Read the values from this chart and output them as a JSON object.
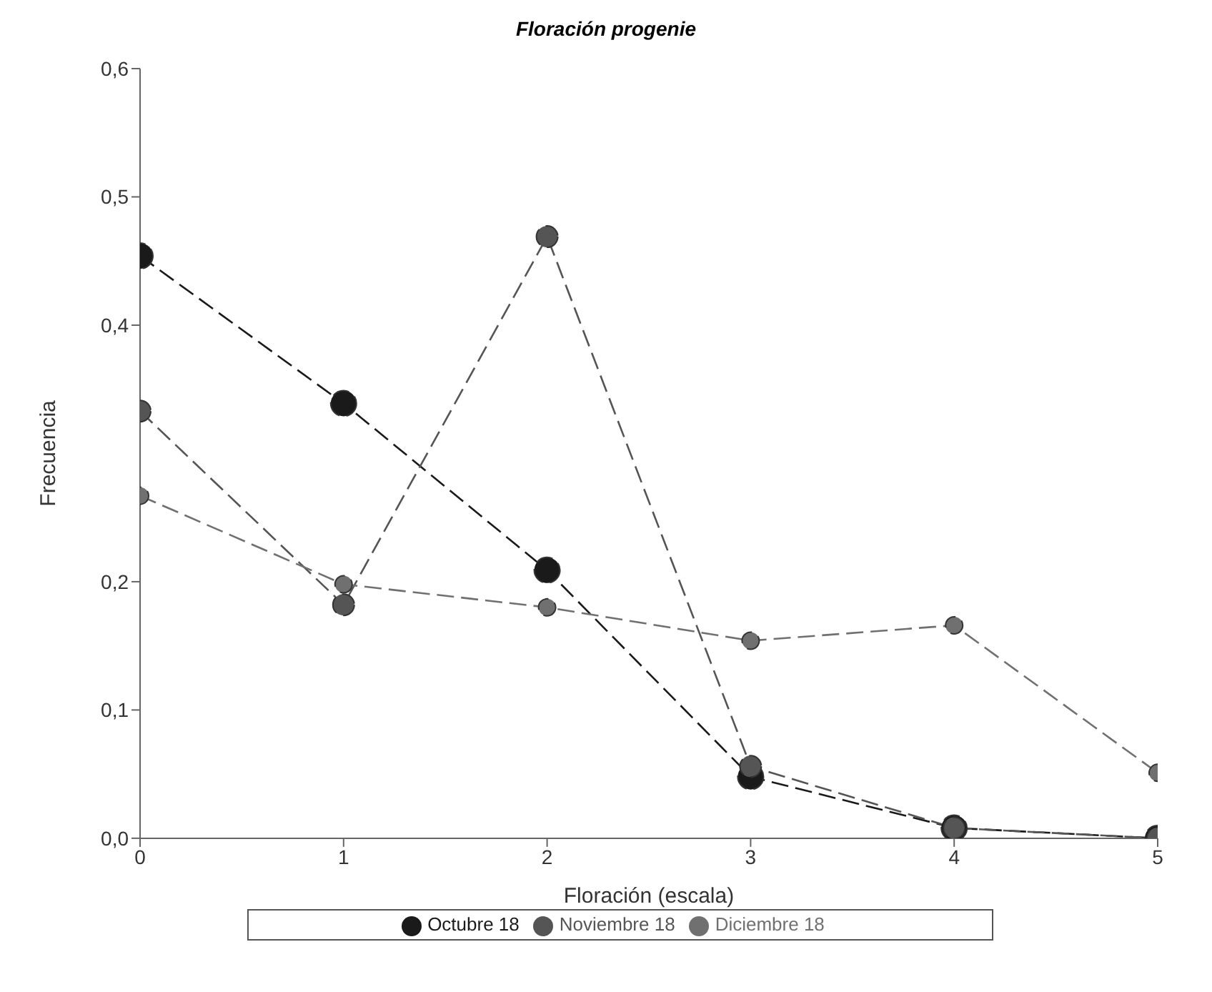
{
  "chart_data": {
    "type": "line",
    "title": "Floración progenie",
    "xlabel": "Floración (escala)",
    "ylabel": "Frecuencia",
    "x": [
      0,
      1,
      2,
      3,
      4,
      5
    ],
    "series": [
      {
        "name": "Octubre 18",
        "color": "#1a1a1a",
        "values": [
          0.454,
          0.339,
          0.209,
          0.048,
          0.008,
          0.0
        ]
      },
      {
        "name": "Noviembre 18",
        "color": "#555555",
        "values": [
          0.333,
          0.182,
          0.469,
          0.056,
          0.008,
          0.0
        ]
      },
      {
        "name": "Diciembre 18",
        "color": "#707070",
        "values": [
          0.267,
          0.198,
          0.18,
          0.154,
          0.166,
          0.051
        ]
      }
    ],
    "xlim": [
      0,
      5
    ],
    "xticks": [
      0,
      1,
      2,
      3,
      4,
      5
    ],
    "ylim": [
      0,
      0.6
    ],
    "yticks": [
      {
        "value": 0,
        "label": "0,0"
      },
      {
        "value": 0.1,
        "label": "0,1"
      },
      {
        "value": 0.2,
        "label": "0,2"
      },
      {
        "value": 0.4,
        "label": "0,4"
      },
      {
        "value": 0.5,
        "label": "0,5"
      },
      {
        "value": 0.6,
        "label": "0,6"
      }
    ],
    "grid": false,
    "legend": "bottom",
    "marker": "circle",
    "line_style": "dashed"
  }
}
